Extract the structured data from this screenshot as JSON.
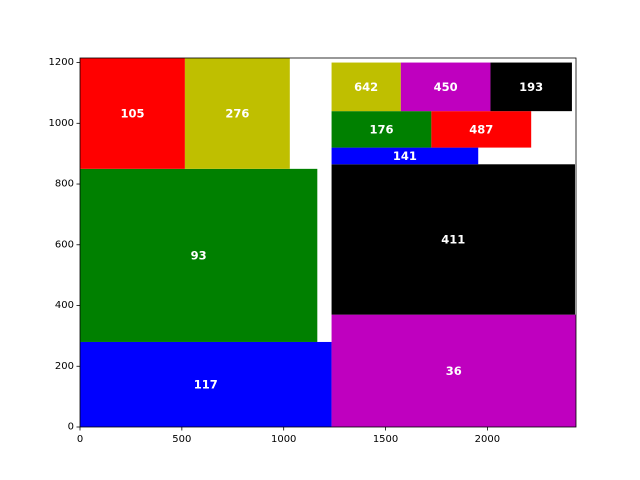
{
  "chart_data": {
    "type": "treemap",
    "title": "",
    "xlabel": "",
    "ylabel": "",
    "xlim": [
      0,
      2435
    ],
    "ylim": [
      0,
      1215
    ],
    "xticks": [
      0,
      500,
      1000,
      1500,
      2000
    ],
    "yticks": [
      0,
      200,
      400,
      600,
      800,
      1000,
      1200
    ],
    "grid": false,
    "rects": [
      {
        "label": "117",
        "x": 0,
        "y": 0,
        "w": 1235,
        "h": 280,
        "color": "#0000ff"
      },
      {
        "label": "93",
        "x": 0,
        "y": 280,
        "w": 1165,
        "h": 570,
        "color": "#008000"
      },
      {
        "label": "105",
        "x": 0,
        "y": 850,
        "w": 515,
        "h": 365,
        "color": "#ff0000"
      },
      {
        "label": "276",
        "x": 515,
        "y": 850,
        "w": 515,
        "h": 365,
        "color": "#bfbf00"
      },
      {
        "label": "36",
        "x": 1235,
        "y": 0,
        "w": 1200,
        "h": 370,
        "color": "#bf00bf"
      },
      {
        "label": "411",
        "x": 1235,
        "y": 370,
        "w": 1195,
        "h": 495,
        "color": "#000000"
      },
      {
        "label": "141",
        "x": 1235,
        "y": 865,
        "w": 720,
        "h": 55,
        "color": "#0000ff"
      },
      {
        "label": "176",
        "x": 1235,
        "y": 920,
        "w": 490,
        "h": 120,
        "color": "#008000"
      },
      {
        "label": "487",
        "x": 1725,
        "y": 920,
        "w": 490,
        "h": 120,
        "color": "#ff0000"
      },
      {
        "label": "642",
        "x": 1235,
        "y": 1040,
        "w": 340,
        "h": 160,
        "color": "#bfbf00"
      },
      {
        "label": "450",
        "x": 1575,
        "y": 1040,
        "w": 440,
        "h": 160,
        "color": "#bf00bf"
      },
      {
        "label": "193",
        "x": 2015,
        "y": 1040,
        "w": 400,
        "h": 160,
        "color": "#000000"
      }
    ]
  }
}
